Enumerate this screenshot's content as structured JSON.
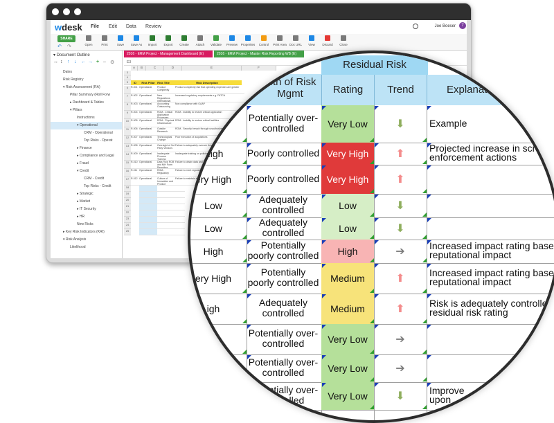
{
  "window": {
    "app_name_prefix": "w",
    "app_name_suffix": "desk",
    "menu": [
      "File",
      "Edit",
      "Data",
      "Review"
    ],
    "user": "Joe Boeser",
    "notification_count": "7"
  },
  "toolbar": {
    "share_label": "SHARE",
    "tools": [
      {
        "label": "Open",
        "icon": "folder-icon",
        "color": "#7a7a7a"
      },
      {
        "label": "Print",
        "icon": "print-icon",
        "color": "#7a7a7a"
      },
      {
        "label": "Save",
        "icon": "save-icon",
        "color": "#1e88e5"
      },
      {
        "label": "Save As",
        "icon": "save-as-icon",
        "color": "#1e88e5"
      },
      {
        "label": "Import",
        "icon": "import-icon",
        "color": "#2e7d32"
      },
      {
        "label": "Export",
        "icon": "export-icon",
        "color": "#2e7d32"
      },
      {
        "label": "Create",
        "icon": "create-icon",
        "color": "#2e7d32"
      },
      {
        "label": "Attach",
        "icon": "attach-icon",
        "color": "#7a7a7a"
      },
      {
        "label": "Validate",
        "icon": "validate-icon",
        "color": "#43a047"
      },
      {
        "label": "Preview",
        "icon": "preview-icon",
        "color": "#1e88e5"
      },
      {
        "label": "Properties",
        "icon": "properties-icon",
        "color": "#1e88e5"
      },
      {
        "label": "Control",
        "icon": "control-icon",
        "color": "#f39c12"
      },
      {
        "label": "Print Area",
        "icon": "print-area-icon",
        "color": "#7a7a7a"
      },
      {
        "label": "Doc URL",
        "icon": "link-icon",
        "color": "#7a7a7a"
      },
      {
        "label": "View",
        "icon": "view-icon",
        "color": "#1e88e5"
      },
      {
        "label": "Discard",
        "icon": "discard-icon",
        "color": "#e53935"
      },
      {
        "label": "Close",
        "icon": "close-icon",
        "color": "#7a7a7a"
      }
    ]
  },
  "doc_tabs": [
    {
      "label": "2016 - ERM Project - Management Dashboard (E)",
      "color": "#d81b60"
    },
    {
      "label": "2016 - ERM Project - Master Risk Reporting WB (E)",
      "color": "#43a047"
    }
  ],
  "outline": {
    "title": "Document Outline",
    "items": [
      {
        "label": "Dates",
        "indent": 2
      },
      {
        "label": "Risk Registry",
        "indent": 2
      },
      {
        "label": "▾ Risk Assessment (RA)",
        "indent": 2
      },
      {
        "label": "Pillar Summary (Roll Forw",
        "indent": 3
      },
      {
        "label": "▸ Dashboard & Tables",
        "indent": 3
      },
      {
        "label": "▾ Pillars",
        "indent": 3
      },
      {
        "label": "Instructions",
        "indent": 4
      },
      {
        "label": "▾ Operational",
        "indent": 4,
        "selected": true
      },
      {
        "label": "CRM - Operational",
        "indent": 5
      },
      {
        "label": "Top Risks - Operat",
        "indent": 5
      },
      {
        "label": "▸ Finance",
        "indent": 4
      },
      {
        "label": "▸ Compliance and Legal",
        "indent": 4
      },
      {
        "label": "▸ Fraud",
        "indent": 4
      },
      {
        "label": "▾ Credit",
        "indent": 4
      },
      {
        "label": "CRM - Credit",
        "indent": 5
      },
      {
        "label": "Top Risks - Credit",
        "indent": 5
      },
      {
        "label": "▸ Strategic",
        "indent": 4
      },
      {
        "label": "▸ Market",
        "indent": 4
      },
      {
        "label": "▸ IT Security",
        "indent": 4
      },
      {
        "label": "▸ HR",
        "indent": 4
      },
      {
        "label": "New Risks",
        "indent": 4
      },
      {
        "label": "▸ Key Risk Indicators (KRI)",
        "indent": 2
      },
      {
        "label": "▾ Risk Analysis",
        "indent": 2
      },
      {
        "label": "Likelihood",
        "indent": 3
      }
    ]
  },
  "sheet": {
    "columns": [
      "A",
      "B",
      "C",
      "D",
      "E",
      "F"
    ],
    "header_cells": [
      "ID",
      "Risk Pillar",
      "Risk Title",
      "Risk Description"
    ],
    "rows": [
      {
        "num": "6",
        "id": "R-001",
        "pillar": "Operational",
        "title": "Product Complexity",
        "desc": "Product complexity risk that operating expenses are greater"
      },
      {
        "num": "7",
        "id": "R-002",
        "pillar": "Operational",
        "title": "New Regulations International",
        "desc": "Increased regulatory requirements e.g. FATCA"
      },
      {
        "num": "8",
        "id": "R-003",
        "pillar": "Operational",
        "title": "Accounting Outsourcing",
        "desc": "Non compliance with GAAP"
      },
      {
        "num": "9",
        "id": "R-004",
        "pillar": "Operational",
        "title": "ROM - Critical Application Processes",
        "desc": "ROM - Inability to restore critical application"
      },
      {
        "num": "10",
        "id": "R-005",
        "pillar": "Operational",
        "title": "ROM - Physical Infrastructure",
        "desc": "ROM - Inability to restore critical facilities"
      },
      {
        "num": "11",
        "id": "R-006",
        "pillar": "Operational",
        "title": "Outside Research",
        "desc": "ROM - Security breach through unauthorized access"
      },
      {
        "num": "12",
        "id": "R-007",
        "pillar": "Operational",
        "title": "Technological Change",
        "desc": "Poor execution of acquisitions"
      },
      {
        "num": "13",
        "id": "R-008",
        "pillar": "Operational",
        "title": "Oversight of 3rd Party Vendors",
        "desc": "Failure to adequately oversee third party vendors"
      },
      {
        "num": "14",
        "id": "R-009",
        "pillar": "Operational",
        "title": "Inadequate Process Training",
        "desc": "Inadequate training on policies and procedures"
      },
      {
        "num": "15",
        "id": "R-010",
        "pillar": "Operational",
        "title": "Data Flow ROB and NIH Form Reporting",
        "desc": "Failure to obtain data and model reporting"
      },
      {
        "num": "16",
        "id": "R-011",
        "pillar": "Operational",
        "title": "ROM - Regulatory",
        "desc": "Failure to meet regulatory requirements"
      },
      {
        "num": "17",
        "id": "R-012",
        "pillar": "Operational",
        "title": "Culture of Innovation and Product Complexity",
        "desc": "Failure to maintain innovation culture"
      }
    ],
    "empty_rows": [
      "18",
      "19",
      "20",
      "21",
      "22",
      "23",
      "24",
      "25"
    ]
  },
  "magnifier": {
    "group_header": "Residual Risk",
    "risk_mgmt_header": "...th of Risk Mgmt",
    "rating_header": "Rating",
    "trend_header": "Trend",
    "expl_header": "Explanat",
    "rows": [
      {
        "inherent": "",
        "control": "Potentially over-controlled",
        "rating": "Very Low",
        "rating_color": "#b5e09a",
        "trend": "down",
        "explanation": "Example"
      },
      {
        "inherent": "High",
        "control": "Poorly controlled",
        "rating": "Very High",
        "rating_color": "#e03a3a",
        "trend": "up",
        "explanation": "Projected increase in scrut\nenforcement actions"
      },
      {
        "inherent": "ery High",
        "control": "Poorly controlled",
        "rating": "Very High",
        "rating_color": "#e03a3a",
        "trend": "up",
        "explanation": ""
      },
      {
        "inherent": "Low",
        "control": "Adequately controlled",
        "rating": "Low",
        "rating_color": "#d6eec6",
        "trend": "down",
        "explanation": ""
      },
      {
        "inherent": "Low",
        "control": "Adequately controlled",
        "rating": "Low",
        "rating_color": "#d6eec6",
        "trend": "down",
        "explanation": ""
      },
      {
        "inherent": "High",
        "control": "Potentially poorly controlled",
        "rating": "High",
        "rating_color": "#f8b4b4",
        "trend": "right",
        "explanation": "Increased impact rating based u\nreputational impact"
      },
      {
        "inherent": "ery High",
        "control": "Potentially poorly controlled",
        "rating": "Medium",
        "rating_color": "#f7e37a",
        "trend": "up",
        "explanation": "Increased impact rating based\nreputational impact"
      },
      {
        "inherent": "igh",
        "control": "Adequately controlled",
        "rating": "Medium",
        "rating_color": "#f7e37a",
        "trend": "up",
        "explanation": "Risk is adequately controlled\nresidual risk rating"
      },
      {
        "inherent": "",
        "control": "Potentially over-controlled",
        "rating": "Very Low",
        "rating_color": "#b5e09a",
        "trend": "right",
        "explanation": ""
      },
      {
        "inherent": "",
        "control": "Potentially over-controlled",
        "rating": "Very Low",
        "rating_color": "#b5e09a",
        "trend": "right",
        "explanation": ""
      },
      {
        "inherent": "",
        "control": "Potentially over-controlled",
        "rating": "Very Low",
        "rating_color": "#b5e09a",
        "trend": "down",
        "explanation": "Improve\nupon"
      }
    ]
  },
  "colors": {
    "trend_up": "#f48c8c",
    "trend_down": "#8fae5e",
    "trend_right": "#7a7a7a"
  }
}
